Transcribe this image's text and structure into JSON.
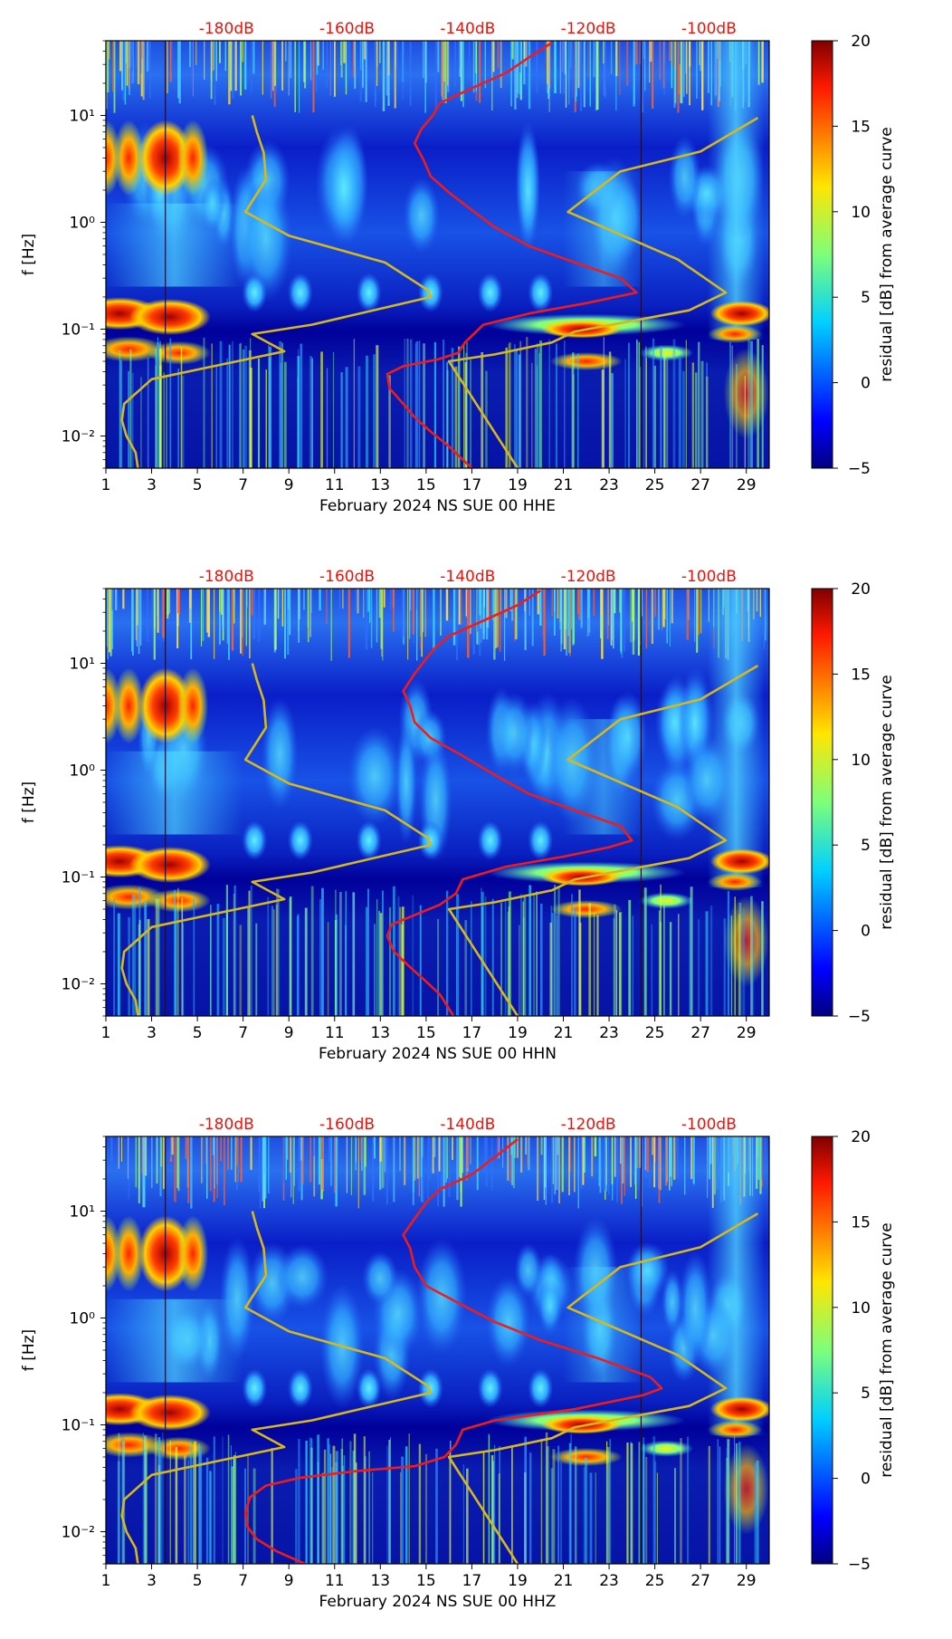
{
  "colorbar": {
    "label": "residual [dB] from average curve",
    "ticks": [
      "20",
      "15",
      "10",
      "5",
      "0",
      "−5"
    ],
    "min": -5,
    "max": 20
  },
  "chart_data": [
    {
      "type": "heatmap",
      "xlabel": "February 2024 NS SUE 00 HHE",
      "ylabel": "f [Hz]",
      "x_ticks": [
        "1",
        "3",
        "5",
        "7",
        "9",
        "11",
        "13",
        "15",
        "17",
        "19",
        "21",
        "23",
        "25",
        "27",
        "29"
      ],
      "x_range": [
        1,
        30
      ],
      "y_ticks": [
        "10⁻²",
        "10⁻¹",
        "10⁰",
        "10¹"
      ],
      "y_range": [
        0.005,
        50
      ],
      "top_labels": [
        "-180dB",
        "-160dB",
        "-140dB",
        "-120dB",
        "-100dB"
      ],
      "top_label_db": [
        -180,
        -160,
        -140,
        -120,
        -100
      ],
      "red_curve": {
        "name": "average PSD curve (top dB scale)",
        "points": [
          [
            17.0,
            0.005
          ],
          [
            16.0,
            0.008
          ],
          [
            15.2,
            0.011
          ],
          [
            14.5,
            0.015
          ],
          [
            14.0,
            0.02
          ],
          [
            13.4,
            0.028
          ],
          [
            13.3,
            0.038
          ],
          [
            14.0,
            0.045
          ],
          [
            15.5,
            0.052
          ],
          [
            16.4,
            0.06
          ],
          [
            16.7,
            0.075
          ],
          [
            17.5,
            0.11
          ],
          [
            19.5,
            0.14
          ],
          [
            22.0,
            0.175
          ],
          [
            24.2,
            0.22
          ],
          [
            23.5,
            0.3
          ],
          [
            21.5,
            0.42
          ],
          [
            19.5,
            0.6
          ],
          [
            18.0,
            0.9
          ],
          [
            17.0,
            1.3
          ],
          [
            16.0,
            1.9
          ],
          [
            15.2,
            2.7
          ],
          [
            14.9,
            3.8
          ],
          [
            14.5,
            5.5
          ],
          [
            14.8,
            7.5
          ],
          [
            15.3,
            10
          ],
          [
            15.6,
            13
          ],
          [
            17.0,
            18
          ],
          [
            18.5,
            25
          ],
          [
            19.5,
            35
          ],
          [
            20.5,
            48
          ]
        ]
      },
      "yellow_curve": {
        "name": "noise model curve",
        "points": [
          [
            2.4,
            0.005
          ],
          [
            2.3,
            0.007
          ],
          [
            1.9,
            0.01
          ],
          [
            1.7,
            0.014
          ],
          [
            1.8,
            0.02
          ],
          [
            3.0,
            0.034
          ],
          [
            8.8,
            0.062
          ],
          [
            7.4,
            0.09
          ],
          [
            10.0,
            0.11
          ],
          [
            15.2,
            0.2
          ],
          [
            15.1,
            0.23
          ],
          [
            13.2,
            0.42
          ],
          [
            9.0,
            0.75
          ],
          [
            7.1,
            1.25
          ],
          [
            8.0,
            2.5
          ],
          [
            7.9,
            4.5
          ],
          [
            7.6,
            7
          ],
          [
            7.4,
            10
          ]
        ],
        "points_b": [
          [
            19.0,
            0.005
          ],
          [
            16.0,
            0.05
          ],
          [
            18.0,
            0.058
          ],
          [
            20.5,
            0.075
          ],
          [
            21.5,
            0.095
          ],
          [
            26.5,
            0.15
          ],
          [
            28.1,
            0.22
          ],
          [
            26.0,
            0.45
          ],
          [
            21.2,
            1.25
          ],
          [
            23.5,
            3.0
          ],
          [
            27.0,
            4.6
          ],
          [
            29.5,
            9.5
          ]
        ]
      }
    },
    {
      "type": "heatmap",
      "xlabel": "February 2024 NS SUE 00 HHN",
      "ylabel": "f [Hz]",
      "x_ticks": [
        "1",
        "3",
        "5",
        "7",
        "9",
        "11",
        "13",
        "15",
        "17",
        "19",
        "21",
        "23",
        "25",
        "27",
        "29"
      ],
      "x_range": [
        1,
        30
      ],
      "y_ticks": [
        "10⁻²",
        "10⁻¹",
        "10⁰",
        "10¹"
      ],
      "y_range": [
        0.005,
        50
      ],
      "top_labels": [
        "-180dB",
        "-160dB",
        "-140dB",
        "-120dB",
        "-100dB"
      ],
      "top_label_db": [
        -180,
        -160,
        -140,
        -120,
        -100
      ],
      "red_curve": {
        "name": "average PSD curve (top dB scale)",
        "points": [
          [
            16.2,
            0.005
          ],
          [
            15.6,
            0.008
          ],
          [
            14.9,
            0.011
          ],
          [
            14.2,
            0.015
          ],
          [
            13.6,
            0.02
          ],
          [
            13.3,
            0.028
          ],
          [
            13.5,
            0.036
          ],
          [
            14.5,
            0.044
          ],
          [
            15.6,
            0.055
          ],
          [
            16.3,
            0.07
          ],
          [
            16.6,
            0.095
          ],
          [
            18.5,
            0.125
          ],
          [
            21.0,
            0.155
          ],
          [
            23.0,
            0.19
          ],
          [
            24.0,
            0.22
          ],
          [
            23.5,
            0.3
          ],
          [
            21.5,
            0.42
          ],
          [
            19.5,
            0.6
          ],
          [
            18.0,
            0.9
          ],
          [
            16.5,
            1.4
          ],
          [
            15.2,
            2.0
          ],
          [
            14.5,
            2.8
          ],
          [
            14.3,
            4.0
          ],
          [
            14.0,
            5.5
          ],
          [
            14.5,
            8.0
          ],
          [
            15.0,
            11
          ],
          [
            15.4,
            14
          ],
          [
            16.0,
            18
          ],
          [
            17.5,
            25
          ],
          [
            19.0,
            35
          ],
          [
            20.0,
            48
          ]
        ]
      },
      "yellow_curve": {
        "name": "noise model curve",
        "points": [
          [
            2.4,
            0.005
          ],
          [
            2.3,
            0.007
          ],
          [
            1.9,
            0.01
          ],
          [
            1.7,
            0.014
          ],
          [
            1.8,
            0.02
          ],
          [
            3.0,
            0.034
          ],
          [
            8.8,
            0.062
          ],
          [
            7.4,
            0.09
          ],
          [
            10.0,
            0.11
          ],
          [
            15.2,
            0.2
          ],
          [
            15.1,
            0.23
          ],
          [
            13.2,
            0.42
          ],
          [
            9.0,
            0.75
          ],
          [
            7.1,
            1.25
          ],
          [
            8.0,
            2.5
          ],
          [
            7.9,
            4.5
          ],
          [
            7.6,
            7
          ],
          [
            7.4,
            10
          ]
        ],
        "points_b": [
          [
            19.0,
            0.005
          ],
          [
            16.0,
            0.05
          ],
          [
            18.0,
            0.058
          ],
          [
            20.5,
            0.075
          ],
          [
            21.5,
            0.095
          ],
          [
            26.5,
            0.15
          ],
          [
            28.1,
            0.22
          ],
          [
            26.0,
            0.45
          ],
          [
            21.2,
            1.25
          ],
          [
            23.5,
            3.0
          ],
          [
            27.0,
            4.6
          ],
          [
            29.5,
            9.5
          ]
        ]
      }
    },
    {
      "type": "heatmap",
      "xlabel": "February 2024 NS SUE 00 HHZ",
      "ylabel": "f [Hz]",
      "x_ticks": [
        "1",
        "3",
        "5",
        "7",
        "9",
        "11",
        "13",
        "15",
        "17",
        "19",
        "21",
        "23",
        "25",
        "27",
        "29"
      ],
      "x_range": [
        1,
        30
      ],
      "y_ticks": [
        "10⁻²",
        "10⁻¹",
        "10⁰",
        "10¹"
      ],
      "y_range": [
        0.005,
        50
      ],
      "top_labels": [
        "-180dB",
        "-160dB",
        "-140dB",
        "-120dB",
        "-100dB"
      ],
      "top_label_db": [
        -180,
        -160,
        -140,
        -120,
        -100
      ],
      "red_curve": {
        "name": "average PSD curve (top dB scale)",
        "points": [
          [
            9.7,
            0.005
          ],
          [
            8.5,
            0.0065
          ],
          [
            7.6,
            0.0085
          ],
          [
            7.2,
            0.011
          ],
          [
            7.1,
            0.015
          ],
          [
            7.3,
            0.021
          ],
          [
            8.0,
            0.027
          ],
          [
            9.5,
            0.032
          ],
          [
            12.0,
            0.037
          ],
          [
            14.5,
            0.041
          ],
          [
            15.8,
            0.05
          ],
          [
            16.3,
            0.065
          ],
          [
            16.6,
            0.09
          ],
          [
            18.0,
            0.11
          ],
          [
            21.5,
            0.14
          ],
          [
            24.5,
            0.19
          ],
          [
            25.3,
            0.22
          ],
          [
            24.8,
            0.28
          ],
          [
            22.5,
            0.42
          ],
          [
            20.0,
            0.62
          ],
          [
            18.0,
            0.92
          ],
          [
            16.5,
            1.35
          ],
          [
            15.0,
            2.0
          ],
          [
            14.5,
            3.0
          ],
          [
            14.3,
            4.5
          ],
          [
            14.0,
            6.0
          ],
          [
            14.5,
            8.5
          ],
          [
            15.0,
            12
          ],
          [
            15.6,
            16
          ],
          [
            17.0,
            22
          ],
          [
            18.0,
            32
          ],
          [
            19.0,
            47
          ]
        ]
      },
      "yellow_curve": {
        "name": "noise model curve",
        "points": [
          [
            2.4,
            0.005
          ],
          [
            2.3,
            0.007
          ],
          [
            1.9,
            0.01
          ],
          [
            1.7,
            0.014
          ],
          [
            1.8,
            0.02
          ],
          [
            3.0,
            0.034
          ],
          [
            8.8,
            0.062
          ],
          [
            7.4,
            0.09
          ],
          [
            10.0,
            0.11
          ],
          [
            15.2,
            0.2
          ],
          [
            15.1,
            0.23
          ],
          [
            13.2,
            0.42
          ],
          [
            9.0,
            0.75
          ],
          [
            7.1,
            1.25
          ],
          [
            8.0,
            2.5
          ],
          [
            7.9,
            4.5
          ],
          [
            7.6,
            7
          ],
          [
            7.4,
            10
          ]
        ],
        "points_b": [
          [
            19.0,
            0.005
          ],
          [
            16.0,
            0.05
          ],
          [
            18.0,
            0.058
          ],
          [
            20.5,
            0.075
          ],
          [
            21.5,
            0.095
          ],
          [
            26.5,
            0.15
          ],
          [
            28.1,
            0.22
          ],
          [
            26.0,
            0.45
          ],
          [
            21.2,
            1.25
          ],
          [
            23.5,
            3.0
          ],
          [
            27.0,
            4.6
          ],
          [
            29.5,
            9.5
          ]
        ]
      }
    }
  ]
}
